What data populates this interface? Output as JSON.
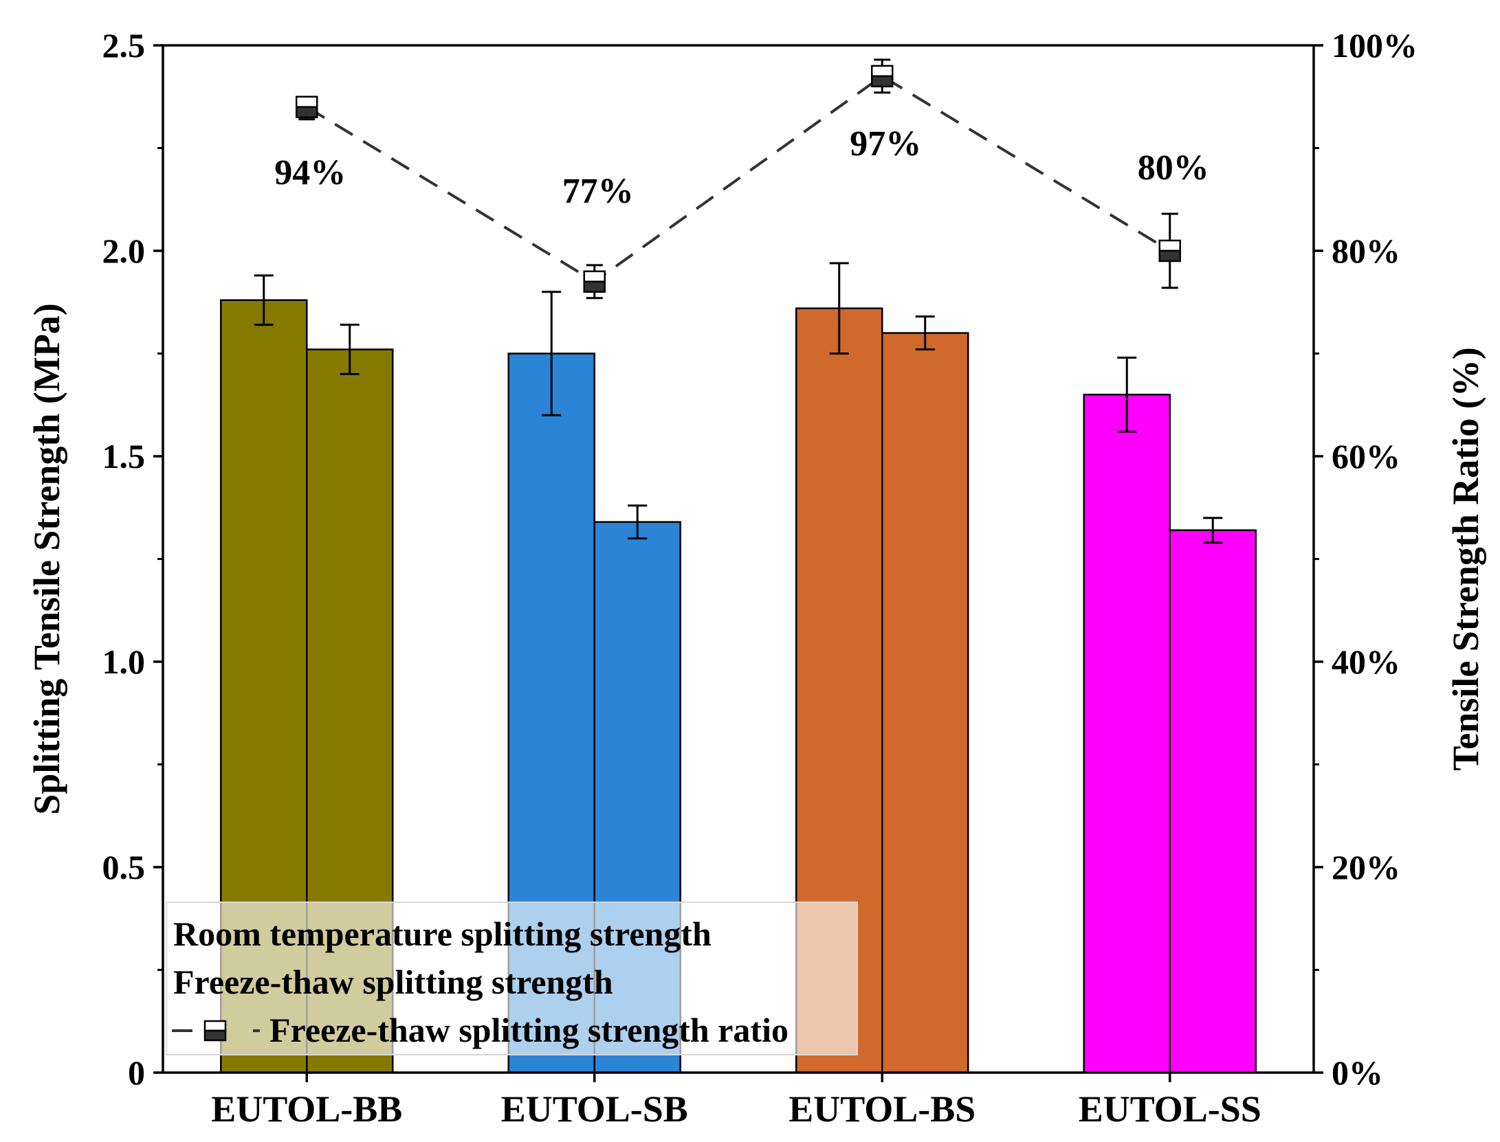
{
  "chart_data": {
    "type": "bar",
    "categories": [
      "EUTOL-BB",
      "EUTOL-SB",
      "EUTOL-BS",
      "EUTOL-SS"
    ],
    "bar_colors": [
      "#857a00",
      "#2b84d6",
      "#d0692b",
      "#ff00ff"
    ],
    "series": [
      {
        "name": "Room temperature splitting strength",
        "values": [
          1.88,
          1.75,
          1.86,
          1.65
        ],
        "errors": [
          0.06,
          0.15,
          0.11,
          0.09
        ]
      },
      {
        "name": "Freeze-thaw splitting strength",
        "values": [
          1.76,
          1.34,
          1.8,
          1.32
        ],
        "errors": [
          0.06,
          0.04,
          0.04,
          0.03
        ]
      }
    ],
    "ratio_series": {
      "name": "Freeze-thaw splitting strength ratio",
      "values": [
        94,
        77,
        97,
        80
      ],
      "errors_up": [
        0.6,
        1.6,
        1.6,
        3.6
      ],
      "errors_down": [
        1.2,
        1.6,
        1.6,
        3.6
      ],
      "labels": [
        "94%",
        "77%",
        "97%",
        "80%"
      ]
    },
    "ylabel_left": "Splitting Tensile Strength (MPa)",
    "ylabel_right": "Tensile Strength Ratio (%)",
    "ylim_left": [
      0,
      2.5
    ],
    "ylim_right": [
      0,
      100
    ],
    "yticks_left": [
      "0",
      "0.5",
      "1.0",
      "1.5",
      "2.0",
      "2.5"
    ],
    "yticks_right": [
      "0%",
      "20%",
      "40%",
      "60%",
      "80%",
      "100%"
    ],
    "legend_position": "bottom-left"
  }
}
